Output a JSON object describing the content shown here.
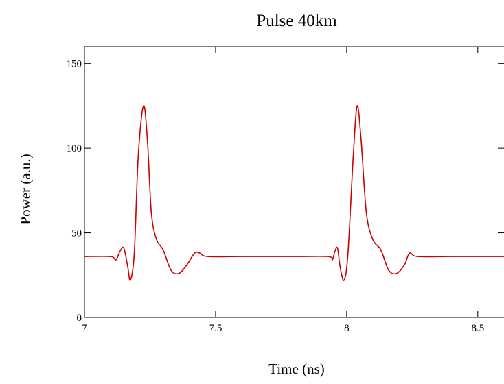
{
  "chart_data": {
    "type": "line",
    "title": "Pulse 40km",
    "xlabel": "Time (ns)",
    "ylabel": "Power (a.u.)",
    "xlim": [
      7,
      8.6
    ],
    "ylim": [
      0,
      160
    ],
    "xticks": [
      7,
      7.5,
      8,
      8.5
    ],
    "xtick_labels": [
      "7",
      "7.5",
      "8",
      "8.5"
    ],
    "yticks": [
      0,
      50,
      100,
      150
    ],
    "ytick_labels": [
      "0",
      "50",
      "100",
      "150"
    ],
    "grid": false,
    "legend": "none",
    "series": [
      {
        "color": "#cc0000",
        "x": [
          7.0,
          7.1,
          7.12,
          7.135,
          7.15,
          7.165,
          7.175,
          7.19,
          7.205,
          7.225,
          7.24,
          7.255,
          7.275,
          7.3,
          7.33,
          7.36,
          7.39,
          7.42,
          7.44,
          7.47,
          7.6,
          7.8,
          7.93,
          7.945,
          7.955,
          7.965,
          7.975,
          7.99,
          8.005,
          8.025,
          8.04,
          8.055,
          8.075,
          8.1,
          8.13,
          8.16,
          8.19,
          8.22,
          8.24,
          8.27,
          8.4,
          8.6
        ],
        "y": [
          36,
          36,
          34,
          39,
          41,
          30,
          22,
          38,
          95,
          125,
          105,
          62,
          46,
          40,
          28,
          26,
          31,
          38,
          38,
          36,
          36,
          36,
          36,
          34,
          39,
          41,
          30,
          22,
          38,
          95,
          125,
          105,
          62,
          46,
          40,
          28,
          26,
          31,
          38,
          36,
          36,
          36
        ]
      }
    ]
  }
}
